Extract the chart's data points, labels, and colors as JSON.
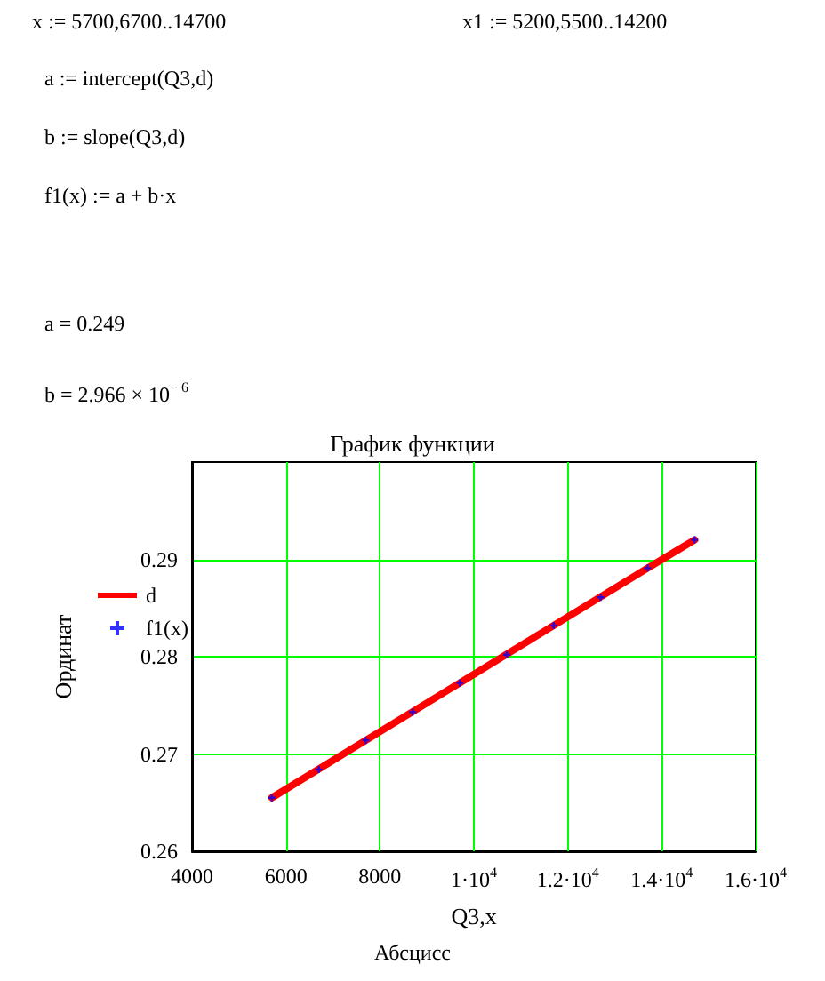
{
  "chart_data": {
    "type": "line",
    "title": "График функции",
    "xlabel": "Q3,x",
    "ylabel": "Ординат",
    "annotations": [
      "x := 5700,6700..14700",
      "x1 := 5200,5500..14200",
      "a := intercept(Q3,d)",
      "b := slope(Q3,d)",
      "f1(x) := a + b·x",
      "a = 0.249",
      "b = 2.966 × 10$^{− 6}$",
      "Абсцисс"
    ],
    "series": [
      {
        "name": "d",
        "type": "line",
        "color": "#ff0000",
        "marker": "none",
        "x": [
          5700,
          7700,
          9700,
          11700,
          13700,
          14700
        ],
        "values": [
          0.2655,
          0.2714,
          0.2773,
          0.2832,
          0.2891,
          0.292
        ]
      },
      {
        "name": "f1(x)",
        "type": "scatter",
        "color": "#0000ff",
        "marker": "cross",
        "x": [
          5700,
          6700,
          7700,
          8700,
          9700,
          10700,
          11700,
          12700,
          13700,
          14700
        ],
        "values": [
          0.2655,
          0.2684,
          0.2714,
          0.2743,
          0.2773,
          0.2802,
          0.2832,
          0.2861,
          0.2891,
          0.292
        ]
      }
    ],
    "xlim": [
      4000,
      16000
    ],
    "xticks": [
      4000,
      6000,
      8000,
      {
        "value": 10000,
        "label": "1·10$^{4}$"
      },
      {
        "value": 12000,
        "label": "1.2·10$^{4}$"
      },
      {
        "value": 14000,
        "label": "1.4·10$^{4}$"
      },
      {
        "value": 16000,
        "label": "1.6·10$^{4}$"
      }
    ],
    "ylim": [
      0.26,
      0.3
    ],
    "yticks": [
      0.26,
      0.27,
      0.28,
      0.29
    ],
    "grid": true,
    "legend": "left"
  }
}
